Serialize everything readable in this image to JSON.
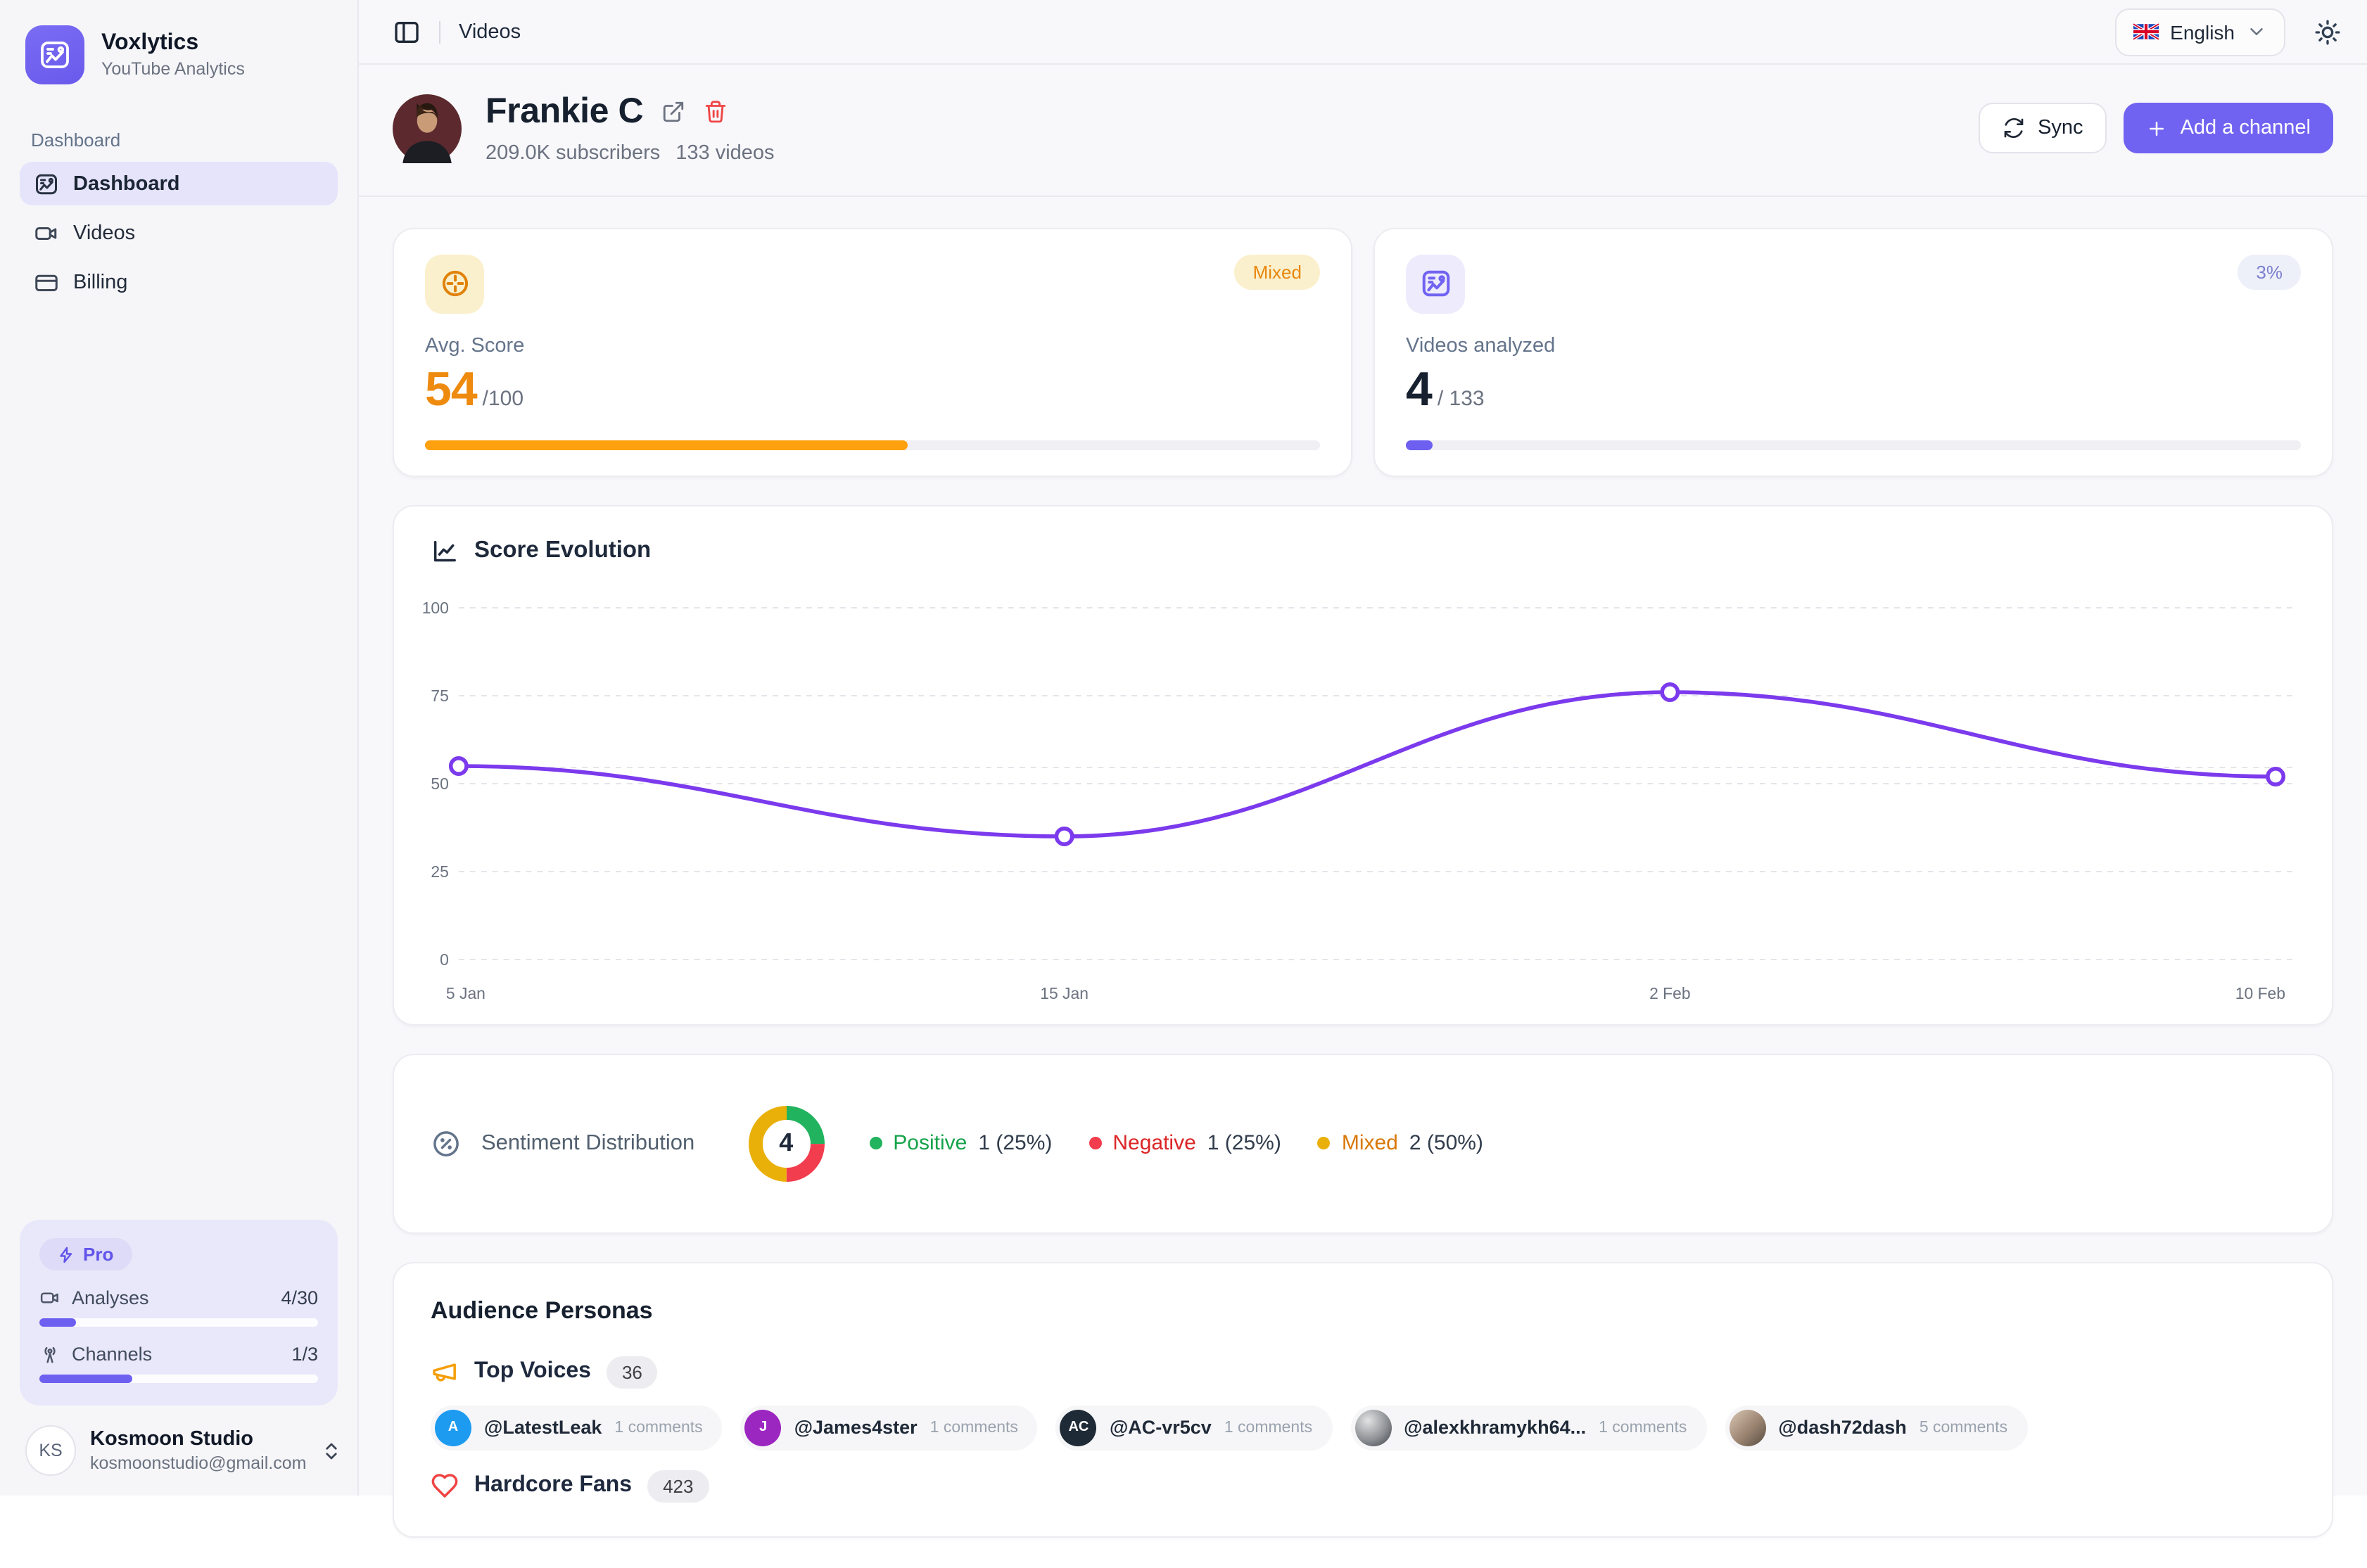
{
  "colors": {
    "accent": "#7163f1",
    "line": "#7c3aed",
    "orange": "#ff9f0e",
    "sidebar_active_bg": "#e5e4fa"
  },
  "sidebar": {
    "brand": {
      "name": "Voxlytics",
      "subtitle": "YouTube Analytics"
    },
    "section_label": "Dashboard",
    "items": [
      {
        "label": "Dashboard",
        "active": true
      },
      {
        "label": "Videos",
        "active": false
      },
      {
        "label": "Billing",
        "active": false
      }
    ],
    "pro": {
      "badge": "Pro",
      "rows": [
        {
          "label": "Analyses",
          "value": "4/30",
          "pct": 13.3
        },
        {
          "label": "Channels",
          "value": "1/3",
          "pct": 33.3
        }
      ]
    },
    "user": {
      "initials": "KS",
      "name": "Kosmoon Studio",
      "email": "kosmoonstudio@gmail.com"
    }
  },
  "topbar": {
    "breadcrumb": "Videos",
    "language": "English"
  },
  "channel": {
    "name": "Frankie C",
    "subscribers": "209.0K subscribers",
    "videos": "133 videos",
    "sync_label": "Sync",
    "add_label": "Add a channel",
    "add_plus": "+"
  },
  "stat_cards": [
    {
      "label": "Avg. Score",
      "value": "54",
      "suffix": "/100",
      "badge": "Mixed",
      "pct": 54,
      "bar": "#ffa00e"
    },
    {
      "label": "Videos analyzed",
      "value": "4",
      "suffix": "/ 133",
      "badge": "3%",
      "pct": 3,
      "bar": "#6d5ff0"
    }
  ],
  "chart_data": [
    {
      "type": "line",
      "title": "Score Evolution",
      "x": [
        "5 Jan",
        "15 Jan",
        "2 Feb",
        "10 Feb"
      ],
      "values": [
        55,
        35,
        76,
        52
      ],
      "ylim": [
        0,
        100
      ],
      "yticks": [
        0,
        25,
        50,
        75,
        100
      ],
      "ref_line": 54.6,
      "line_color": "#7c3aed",
      "grid": "dashed",
      "legend_position": "none"
    },
    {
      "type": "pie",
      "title": "Sentiment Distribution",
      "total": "4",
      "segments": [
        {
          "label": "Positive",
          "value": 1,
          "pct": 25,
          "display": "1 (25%)",
          "color": "#22b35f",
          "text_color": "#16a34a"
        },
        {
          "label": "Negative",
          "value": 1,
          "pct": 25,
          "display": "1 (25%)",
          "color": "#f23d4e",
          "text_color": "#dc2626"
        },
        {
          "label": "Mixed",
          "value": 2,
          "pct": 50,
          "display": "2 (50%)",
          "color": "#eab00a",
          "text_color": "#d97706"
        }
      ]
    }
  ],
  "audience": {
    "title": "Audience Personas",
    "groups": [
      {
        "label": "Top Voices",
        "count": "36",
        "chips": [
          {
            "handle": "@LatestLeak",
            "comments": "1 comments",
            "avatar_text": "A",
            "avatar_bg": "#1d9bf0"
          },
          {
            "handle": "@James4ster",
            "comments": "1 comments",
            "avatar_text": "J",
            "avatar_bg": "#9c27c0"
          },
          {
            "handle": "@AC-vr5cv",
            "comments": "1 comments",
            "avatar_text": "AC",
            "avatar_bg": "#1f2a37"
          },
          {
            "handle": "@alexkhramykh64...",
            "comments": "1 comments",
            "avatar_text": "",
            "avatar_bg": "radial-gradient(circle at 35% 30%, #e3e3e3, #8e9196 55%, #3a3f45)"
          },
          {
            "handle": "@dash72dash",
            "comments": "5 comments",
            "avatar_text": "",
            "avatar_bg": "linear-gradient(135deg, #d9c7b4, #9b8471 55%, #564a40)"
          }
        ]
      },
      {
        "label": "Hardcore Fans",
        "count": "423",
        "chips": []
      }
    ]
  }
}
